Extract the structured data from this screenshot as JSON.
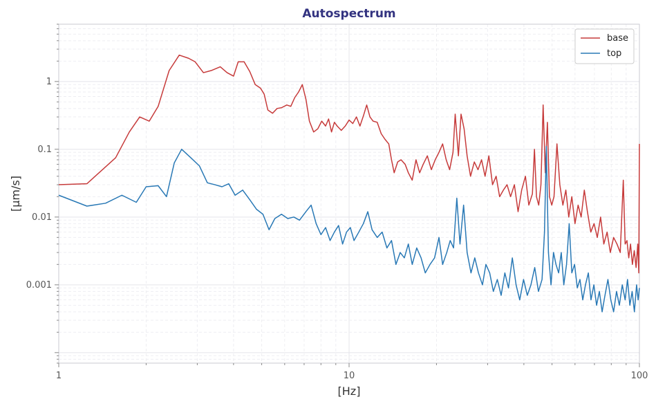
{
  "chart_data": {
    "type": "line",
    "title": "Autospectrum",
    "xlabel": "[Hz]",
    "ylabel": "[µm/s]",
    "xscale": "log",
    "yscale": "log",
    "xlim": [
      1,
      100
    ],
    "ylim": [
      7e-05,
      7
    ],
    "xticks": [
      {
        "value": 1,
        "label": "1"
      },
      {
        "value": 10,
        "label": "10"
      },
      {
        "value": 100,
        "label": "100"
      }
    ],
    "yticks": [
      {
        "value": 0.001,
        "label": "0.001"
      },
      {
        "value": 0.01,
        "label": "0.01"
      },
      {
        "value": 0.1,
        "label": "0.1"
      },
      {
        "value": 1,
        "label": "1"
      }
    ],
    "grid": true,
    "legend_position": "top-right",
    "title_color": "#333380",
    "series": [
      {
        "name": "base",
        "color": "#c63a3a",
        "points": [
          [
            1.0,
            0.03
          ],
          [
            1.25,
            0.031
          ],
          [
            1.57,
            0.075
          ],
          [
            1.75,
            0.18
          ],
          [
            1.9,
            0.3
          ],
          [
            2.05,
            0.26
          ],
          [
            2.2,
            0.43
          ],
          [
            2.4,
            1.45
          ],
          [
            2.6,
            2.45
          ],
          [
            2.8,
            2.2
          ],
          [
            2.95,
            1.95
          ],
          [
            3.15,
            1.35
          ],
          [
            3.35,
            1.45
          ],
          [
            3.6,
            1.65
          ],
          [
            3.8,
            1.35
          ],
          [
            4.0,
            1.2
          ],
          [
            4.15,
            1.95
          ],
          [
            4.35,
            1.95
          ],
          [
            4.55,
            1.4
          ],
          [
            4.75,
            0.9
          ],
          [
            4.95,
            0.8
          ],
          [
            5.1,
            0.65
          ],
          [
            5.25,
            0.38
          ],
          [
            5.45,
            0.34
          ],
          [
            5.65,
            0.4
          ],
          [
            5.85,
            0.41
          ],
          [
            6.1,
            0.45
          ],
          [
            6.3,
            0.43
          ],
          [
            6.5,
            0.58
          ],
          [
            6.7,
            0.7
          ],
          [
            6.9,
            0.9
          ],
          [
            7.1,
            0.55
          ],
          [
            7.3,
            0.26
          ],
          [
            7.55,
            0.18
          ],
          [
            7.8,
            0.2
          ],
          [
            8.05,
            0.26
          ],
          [
            8.3,
            0.22
          ],
          [
            8.5,
            0.28
          ],
          [
            8.7,
            0.18
          ],
          [
            8.9,
            0.25
          ],
          [
            9.1,
            0.22
          ],
          [
            9.4,
            0.19
          ],
          [
            9.7,
            0.22
          ],
          [
            10.0,
            0.27
          ],
          [
            10.3,
            0.24
          ],
          [
            10.6,
            0.3
          ],
          [
            10.9,
            0.22
          ],
          [
            11.2,
            0.31
          ],
          [
            11.5,
            0.45
          ],
          [
            11.8,
            0.3
          ],
          [
            12.1,
            0.26
          ],
          [
            12.5,
            0.25
          ],
          [
            12.9,
            0.17
          ],
          [
            13.3,
            0.14
          ],
          [
            13.7,
            0.12
          ],
          [
            14.0,
            0.07
          ],
          [
            14.3,
            0.045
          ],
          [
            14.7,
            0.065
          ],
          [
            15.1,
            0.07
          ],
          [
            15.6,
            0.06
          ],
          [
            16.0,
            0.045
          ],
          [
            16.5,
            0.035
          ],
          [
            17.0,
            0.07
          ],
          [
            17.5,
            0.045
          ],
          [
            18.0,
            0.06
          ],
          [
            18.6,
            0.08
          ],
          [
            19.2,
            0.05
          ],
          [
            19.8,
            0.07
          ],
          [
            20.4,
            0.09
          ],
          [
            21.0,
            0.12
          ],
          [
            21.6,
            0.07
          ],
          [
            22.2,
            0.05
          ],
          [
            22.8,
            0.09
          ],
          [
            23.2,
            0.33
          ],
          [
            23.8,
            0.08
          ],
          [
            24.3,
            0.33
          ],
          [
            24.9,
            0.2
          ],
          [
            25.5,
            0.08
          ],
          [
            26.2,
            0.04
          ],
          [
            27.0,
            0.065
          ],
          [
            27.8,
            0.05
          ],
          [
            28.6,
            0.07
          ],
          [
            29.4,
            0.04
          ],
          [
            30.3,
            0.08
          ],
          [
            31.2,
            0.03
          ],
          [
            32.1,
            0.04
          ],
          [
            33.0,
            0.02
          ],
          [
            34.0,
            0.025
          ],
          [
            35.0,
            0.03
          ],
          [
            36.0,
            0.02
          ],
          [
            37.1,
            0.03
          ],
          [
            38.2,
            0.012
          ],
          [
            39.3,
            0.025
          ],
          [
            40.5,
            0.04
          ],
          [
            41.6,
            0.015
          ],
          [
            42.8,
            0.022
          ],
          [
            43.5,
            0.1
          ],
          [
            44.2,
            0.02
          ],
          [
            45.0,
            0.015
          ],
          [
            45.8,
            0.03
          ],
          [
            46.6,
            0.45
          ],
          [
            47.4,
            0.045
          ],
          [
            48.2,
            0.25
          ],
          [
            49.0,
            0.02
          ],
          [
            49.9,
            0.015
          ],
          [
            50.8,
            0.02
          ],
          [
            52.0,
            0.12
          ],
          [
            53.2,
            0.03
          ],
          [
            54.5,
            0.015
          ],
          [
            55.8,
            0.025
          ],
          [
            57.1,
            0.01
          ],
          [
            58.5,
            0.02
          ],
          [
            60.0,
            0.008
          ],
          [
            61.5,
            0.015
          ],
          [
            63.0,
            0.01
          ],
          [
            64.6,
            0.025
          ],
          [
            66.2,
            0.012
          ],
          [
            68.0,
            0.006
          ],
          [
            69.8,
            0.008
          ],
          [
            71.6,
            0.005
          ],
          [
            73.5,
            0.01
          ],
          [
            75.4,
            0.004
          ],
          [
            77.4,
            0.006
          ],
          [
            79.4,
            0.003
          ],
          [
            81.5,
            0.005
          ],
          [
            83.7,
            0.004
          ],
          [
            85.9,
            0.003
          ],
          [
            88.0,
            0.035
          ],
          [
            89.3,
            0.004
          ],
          [
            90.6,
            0.0045
          ],
          [
            91.9,
            0.0025
          ],
          [
            93.2,
            0.004
          ],
          [
            94.6,
            0.002
          ],
          [
            96.0,
            0.0032
          ],
          [
            97.4,
            0.0018
          ],
          [
            98.7,
            0.004
          ],
          [
            99.5,
            0.0015
          ],
          [
            100.0,
            0.12
          ]
        ]
      },
      {
        "name": "top",
        "color": "#2878b5",
        "points": [
          [
            1.0,
            0.021
          ],
          [
            1.25,
            0.0145
          ],
          [
            1.45,
            0.016
          ],
          [
            1.65,
            0.021
          ],
          [
            1.85,
            0.0165
          ],
          [
            2.0,
            0.028
          ],
          [
            2.2,
            0.029
          ],
          [
            2.35,
            0.02
          ],
          [
            2.5,
            0.063
          ],
          [
            2.65,
            0.1
          ],
          [
            2.85,
            0.075
          ],
          [
            3.05,
            0.057
          ],
          [
            3.25,
            0.032
          ],
          [
            3.45,
            0.03
          ],
          [
            3.65,
            0.028
          ],
          [
            3.85,
            0.031
          ],
          [
            4.05,
            0.021
          ],
          [
            4.3,
            0.025
          ],
          [
            4.55,
            0.018
          ],
          [
            4.8,
            0.013
          ],
          [
            5.05,
            0.011
          ],
          [
            5.3,
            0.0065
          ],
          [
            5.55,
            0.0095
          ],
          [
            5.85,
            0.011
          ],
          [
            6.15,
            0.0095
          ],
          [
            6.45,
            0.01
          ],
          [
            6.75,
            0.009
          ],
          [
            7.1,
            0.012
          ],
          [
            7.4,
            0.015
          ],
          [
            7.7,
            0.008
          ],
          [
            8.0,
            0.0055
          ],
          [
            8.3,
            0.007
          ],
          [
            8.6,
            0.0045
          ],
          [
            8.9,
            0.006
          ],
          [
            9.2,
            0.0075
          ],
          [
            9.5,
            0.004
          ],
          [
            9.8,
            0.006
          ],
          [
            10.1,
            0.007
          ],
          [
            10.4,
            0.0045
          ],
          [
            10.8,
            0.006
          ],
          [
            11.2,
            0.008
          ],
          [
            11.6,
            0.012
          ],
          [
            12.0,
            0.0065
          ],
          [
            12.5,
            0.005
          ],
          [
            13.0,
            0.006
          ],
          [
            13.5,
            0.0035
          ],
          [
            14.0,
            0.0045
          ],
          [
            14.5,
            0.002
          ],
          [
            15.0,
            0.003
          ],
          [
            15.5,
            0.0025
          ],
          [
            16.0,
            0.004
          ],
          [
            16.5,
            0.002
          ],
          [
            17.1,
            0.0035
          ],
          [
            17.7,
            0.0025
          ],
          [
            18.3,
            0.0015
          ],
          [
            19.0,
            0.002
          ],
          [
            19.7,
            0.0025
          ],
          [
            20.4,
            0.005
          ],
          [
            21.0,
            0.002
          ],
          [
            21.7,
            0.003
          ],
          [
            22.3,
            0.0045
          ],
          [
            22.9,
            0.0035
          ],
          [
            23.5,
            0.019
          ],
          [
            24.1,
            0.004
          ],
          [
            24.8,
            0.015
          ],
          [
            25.5,
            0.003
          ],
          [
            26.3,
            0.0015
          ],
          [
            27.1,
            0.0025
          ],
          [
            27.9,
            0.0015
          ],
          [
            28.8,
            0.001
          ],
          [
            29.6,
            0.002
          ],
          [
            30.5,
            0.0015
          ],
          [
            31.4,
            0.0008
          ],
          [
            32.4,
            0.0012
          ],
          [
            33.4,
            0.0007
          ],
          [
            34.4,
            0.0015
          ],
          [
            35.4,
            0.0009
          ],
          [
            36.5,
            0.0025
          ],
          [
            37.6,
            0.001
          ],
          [
            38.7,
            0.0006
          ],
          [
            39.9,
            0.0012
          ],
          [
            41.1,
            0.0007
          ],
          [
            42.3,
            0.001
          ],
          [
            43.6,
            0.0018
          ],
          [
            44.9,
            0.0008
          ],
          [
            46.2,
            0.0012
          ],
          [
            47.1,
            0.006
          ],
          [
            47.8,
            0.11
          ],
          [
            48.6,
            0.003
          ],
          [
            49.6,
            0.001
          ],
          [
            50.6,
            0.003
          ],
          [
            51.6,
            0.002
          ],
          [
            52.7,
            0.0015
          ],
          [
            53.8,
            0.003
          ],
          [
            54.9,
            0.001
          ],
          [
            56.1,
            0.002
          ],
          [
            57.3,
            0.008
          ],
          [
            58.5,
            0.0015
          ],
          [
            59.8,
            0.002
          ],
          [
            61.1,
            0.0009
          ],
          [
            62.4,
            0.0012
          ],
          [
            63.8,
            0.0006
          ],
          [
            65.2,
            0.001
          ],
          [
            66.7,
            0.0015
          ],
          [
            68.1,
            0.0006
          ],
          [
            69.7,
            0.001
          ],
          [
            71.2,
            0.0005
          ],
          [
            72.8,
            0.0008
          ],
          [
            74.4,
            0.0004
          ],
          [
            76.1,
            0.0007
          ],
          [
            77.9,
            0.0012
          ],
          [
            79.7,
            0.0006
          ],
          [
            81.5,
            0.0004
          ],
          [
            83.4,
            0.0008
          ],
          [
            85.3,
            0.0005
          ],
          [
            87.3,
            0.001
          ],
          [
            89.3,
            0.0006
          ],
          [
            91.0,
            0.0012
          ],
          [
            92.7,
            0.0005
          ],
          [
            94.4,
            0.0008
          ],
          [
            96.1,
            0.0004
          ],
          [
            97.8,
            0.001
          ],
          [
            99.0,
            0.0006
          ],
          [
            100.0,
            0.0009
          ]
        ]
      }
    ]
  }
}
